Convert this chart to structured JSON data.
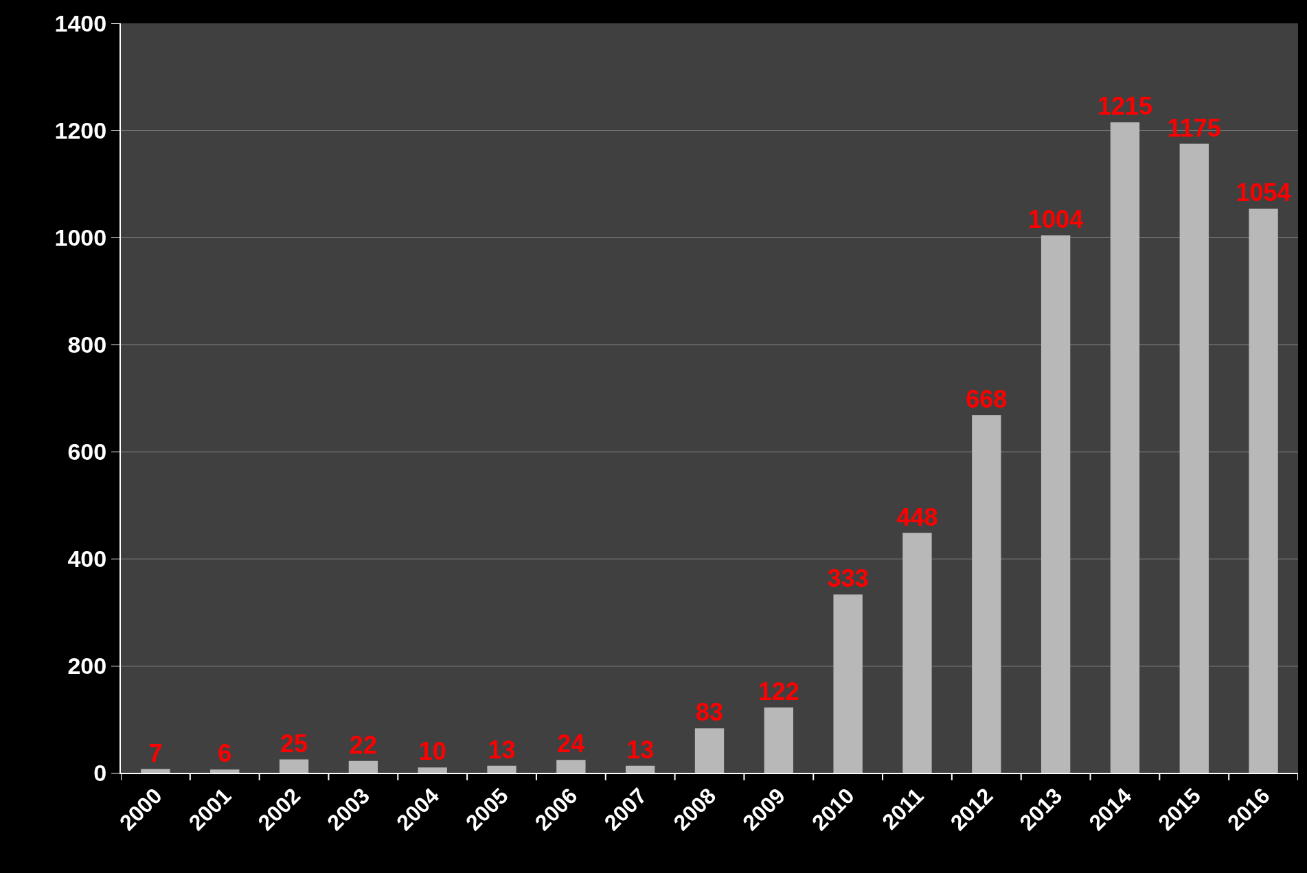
{
  "chart_data": {
    "type": "bar",
    "categories": [
      "2000",
      "2001",
      "2002",
      "2003",
      "2004",
      "2005",
      "2006",
      "2007",
      "2008",
      "2009",
      "2010",
      "2011",
      "2012",
      "2013",
      "2014",
      "2015",
      "2016"
    ],
    "values": [
      7,
      6,
      25,
      22,
      10,
      13,
      24,
      13,
      83,
      122,
      333,
      448,
      668,
      1004,
      1215,
      1175,
      1054
    ],
    "color": "#b8b8b8",
    "ylim": [
      0,
      1400
    ],
    "yticks": [
      0,
      200,
      400,
      600,
      800,
      1000,
      1200,
      1400
    ],
    "grid": "y",
    "data_labels": true
  }
}
